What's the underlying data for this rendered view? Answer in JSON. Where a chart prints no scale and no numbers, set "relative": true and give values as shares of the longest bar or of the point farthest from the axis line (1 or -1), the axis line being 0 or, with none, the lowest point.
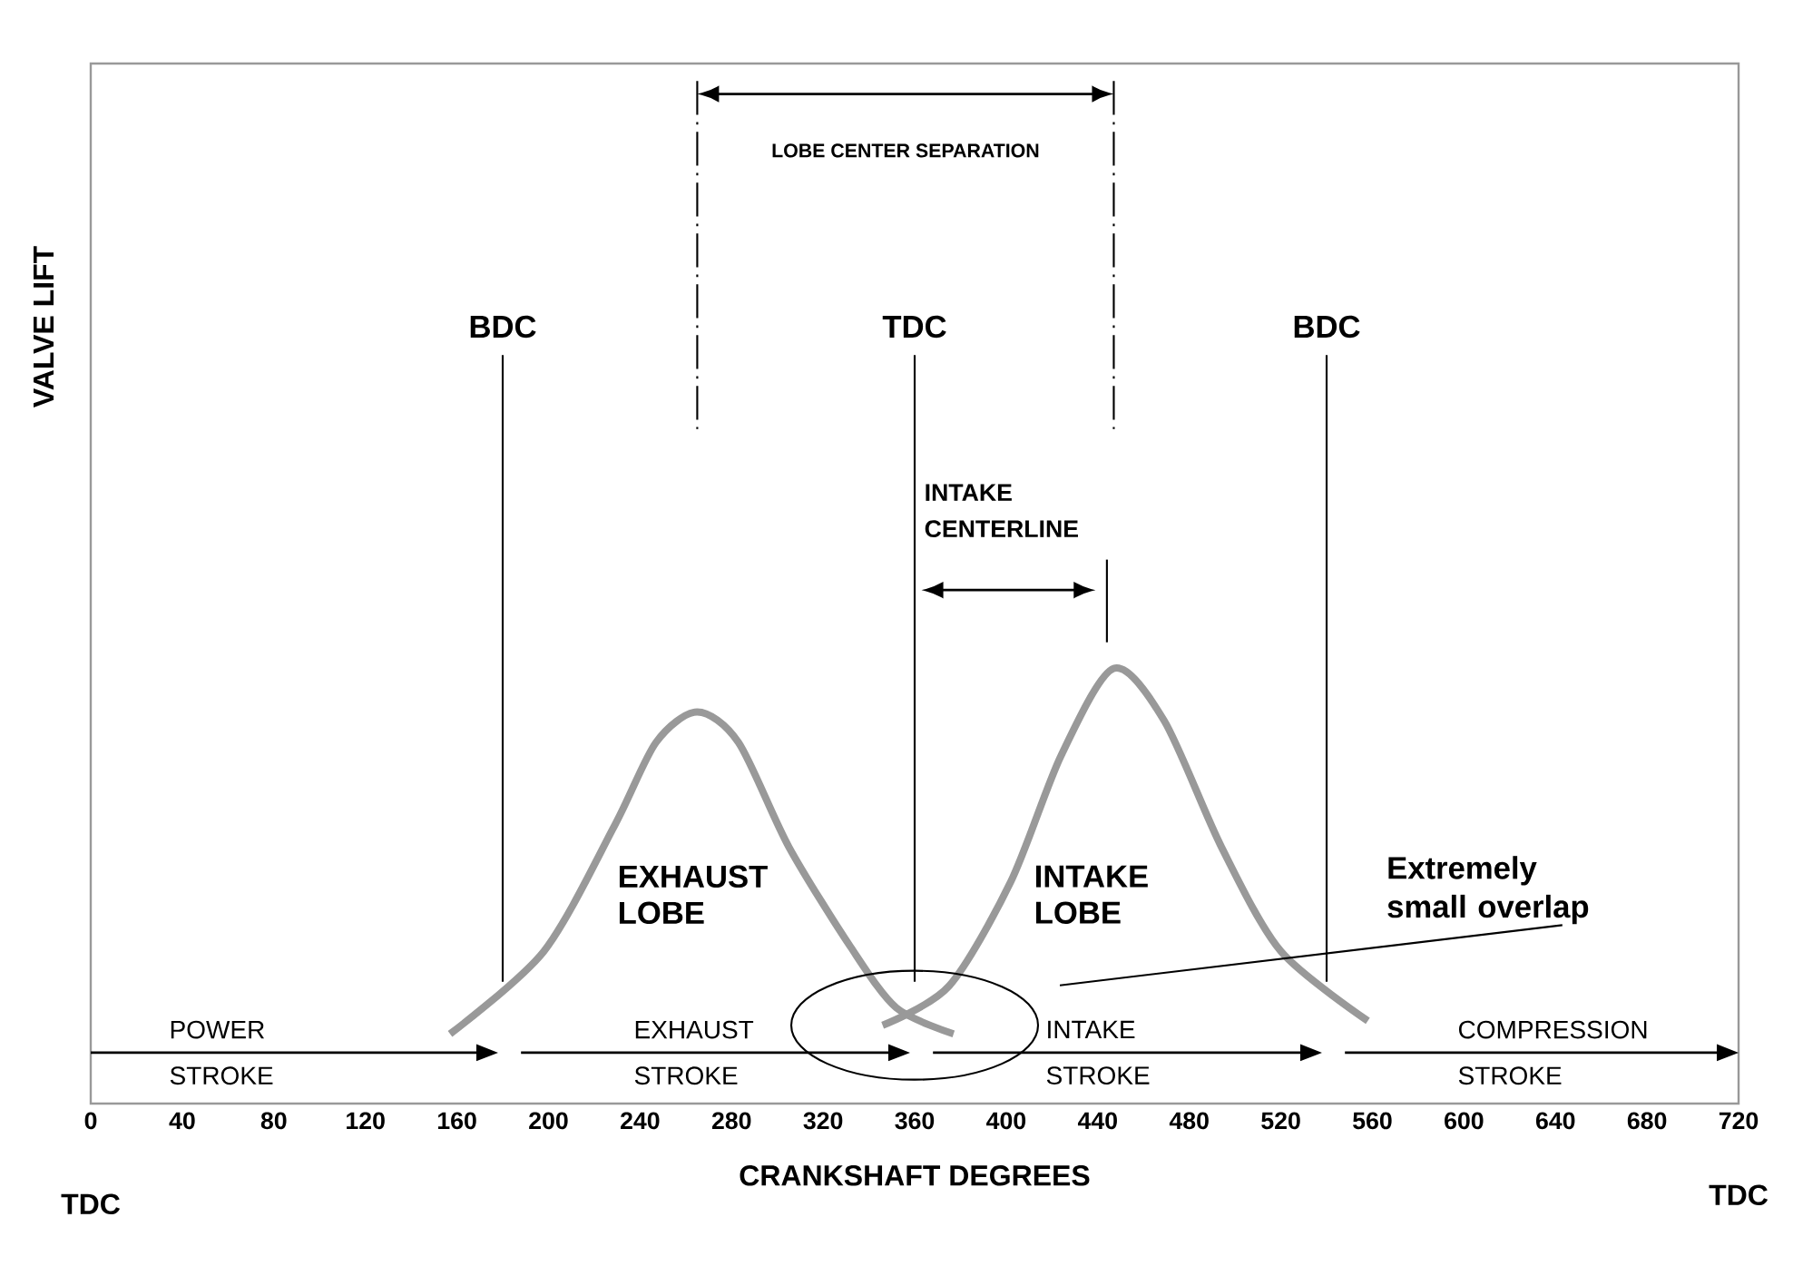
{
  "chart_data": {
    "type": "line",
    "relative": true,
    "xlabel": "CRANKSHAFT DEGREES",
    "xlim": [
      0,
      720
    ],
    "xticks": [
      0,
      40,
      80,
      120,
      160,
      200,
      240,
      280,
      320,
      360,
      400,
      440,
      480,
      520,
      560,
      600,
      640,
      680,
      720
    ],
    "series": [
      {
        "name": "EXHAUST LOBE",
        "color": "#999999",
        "x": [
          157,
          198,
          229,
          247,
          265,
          283,
          305,
          332,
          352,
          377
        ],
        "values": [
          0.16,
          0.35,
          0.64,
          0.83,
          0.9,
          0.83,
          0.59,
          0.36,
          0.22,
          0.16
        ]
      },
      {
        "name": "INTAKE LOBE",
        "color": "#999999",
        "x": [
          346,
          375,
          402,
          424,
          447,
          469,
          494,
          520,
          558
        ],
        "values": [
          0.18,
          0.27,
          0.51,
          0.8,
          1,
          0.88,
          0.59,
          0.35,
          0.19
        ]
      }
    ],
    "ref_lines": [
      {
        "axis": "x",
        "value": 180,
        "label": "BDC"
      },
      {
        "axis": "x",
        "value": 360,
        "label": "TDC"
      },
      {
        "axis": "x",
        "value": 540,
        "label": "BDC"
      }
    ],
    "annotations": [
      "LOBE CENTER SEPARATION",
      "INTAKE CENTERLINE",
      "Extremely small overlap",
      "POWER STROKE",
      "EXHAUST STROKE",
      "INTAKE STROKE",
      "COMPRESSION STROKE",
      "TDC",
      "TDC",
      "VALVE LIFT"
    ]
  }
}
